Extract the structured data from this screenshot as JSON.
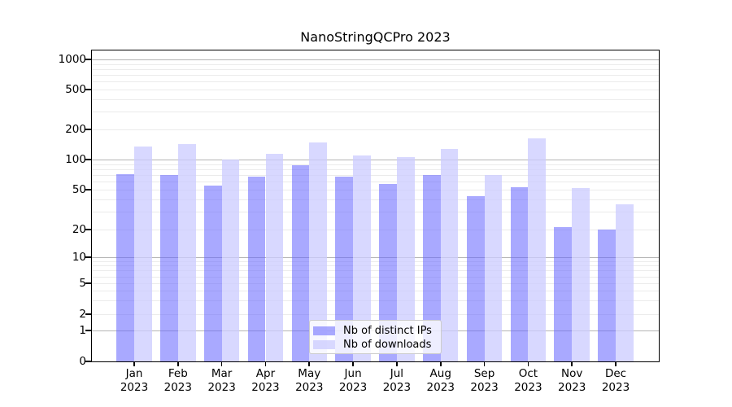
{
  "chart_data": {
    "type": "bar",
    "title": "NanoStringQCPro 2023",
    "yscale": "symlog",
    "ylim": [
      0,
      1000
    ],
    "y_ticks": [
      0,
      1,
      2,
      5,
      10,
      20,
      50,
      100,
      200,
      500,
      1000
    ],
    "grid": "horizontal log gridlines, major at powers of 10, minor at 2-9 per decade",
    "legend_position": "lower center",
    "months": [
      "Jan",
      "Feb",
      "Mar",
      "Apr",
      "May",
      "Jun",
      "Jul",
      "Aug",
      "Sep",
      "Oct",
      "Nov",
      "Dec"
    ],
    "year": "2023",
    "series": [
      {
        "name": "Nb of distinct IPs",
        "color": "#a9a9fa",
        "fill": "rgba(102,102,255,0.56)",
        "values": [
          72,
          70,
          55,
          67,
          87,
          68,
          57,
          70,
          43,
          53,
          21,
          20
        ]
      },
      {
        "name": "Nb of downloads",
        "color": "#d8d8fa",
        "fill": "rgba(204,204,255,0.76)",
        "values": [
          135,
          144,
          101,
          115,
          147,
          110,
          105,
          128,
          70,
          163,
          52,
          36
        ]
      }
    ]
  }
}
